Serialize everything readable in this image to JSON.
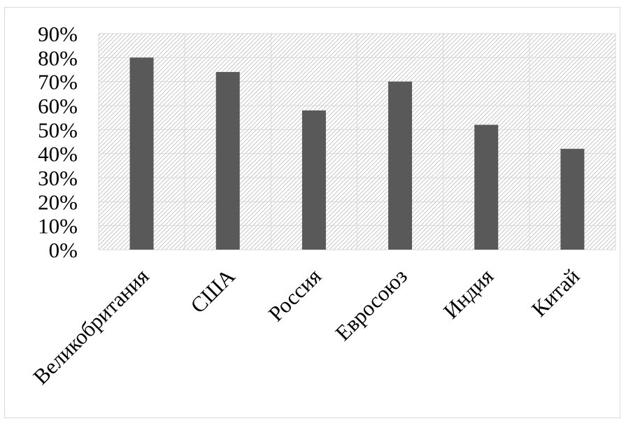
{
  "chart_data": {
    "type": "bar",
    "title": "",
    "xlabel": "",
    "ylabel": "",
    "categories": [
      "Великобритания",
      "США",
      "Россия",
      "Евросоюз",
      "Индия",
      "Китай"
    ],
    "values": [
      80,
      74,
      58,
      70,
      52,
      42
    ],
    "value_unit": "%",
    "ylim": [
      0,
      90
    ],
    "y_ticks": [
      "0%",
      "10%",
      "20%",
      "30%",
      "40%",
      "50%",
      "60%",
      "70%",
      "80%",
      "90%"
    ],
    "grid": true,
    "plot_background": "diagonal-hatch",
    "bar_color": "#595959",
    "grid_color": "#d9d9d9",
    "hatch_color": "#c8c8c8"
  }
}
